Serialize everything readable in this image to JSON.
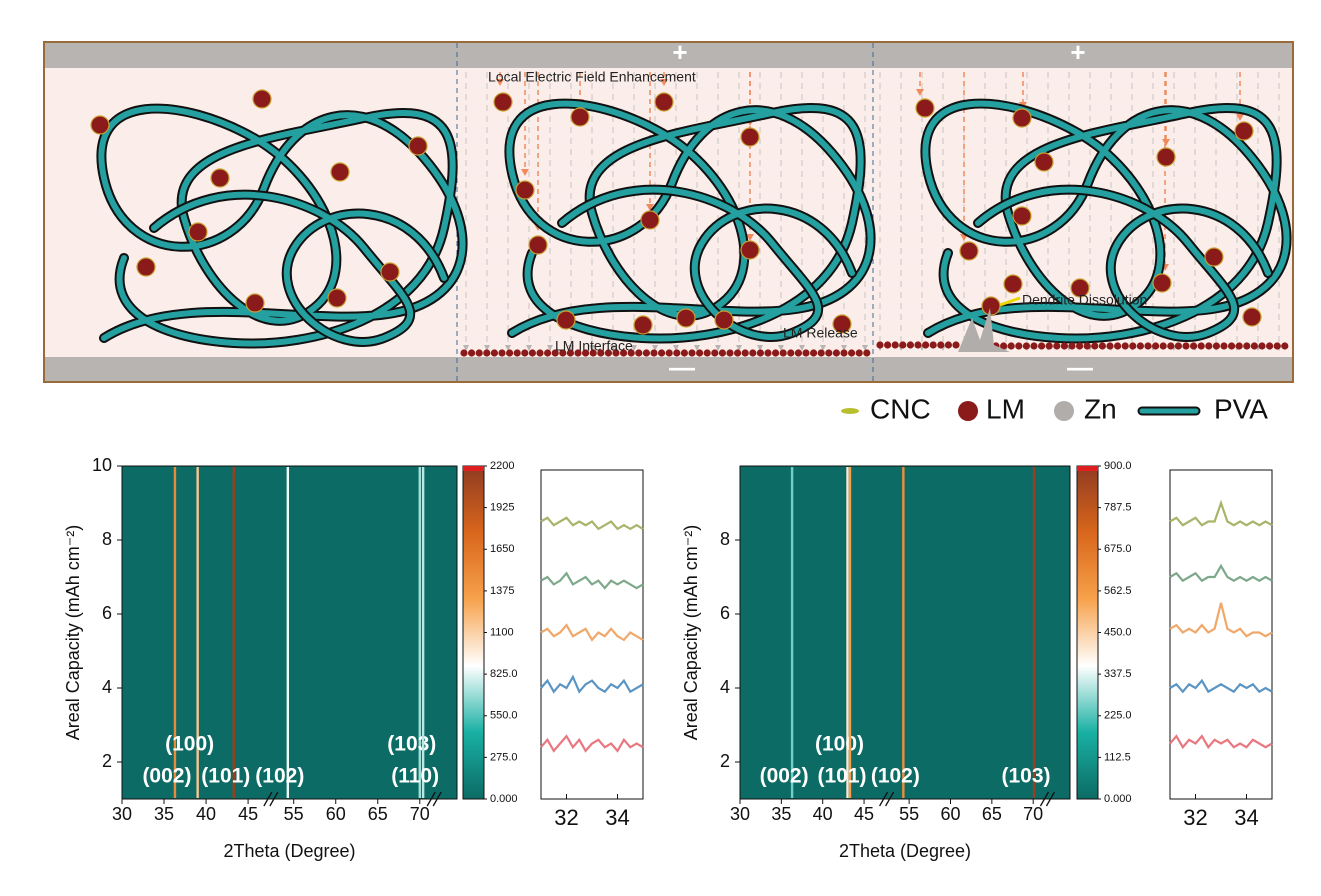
{
  "schematic": {
    "top_signs": [
      "+",
      "+"
    ],
    "bottom_signs": [
      "—",
      "—"
    ],
    "annotations": [
      "Local Electric Field Enhancement",
      "LM Interface",
      "LM Release",
      "Dendrite Dissolution"
    ],
    "legend": [
      "CNC",
      "LM",
      "Zn",
      "PVA"
    ]
  },
  "chart_data": [
    {
      "type": "heatmap",
      "xlabel": "2Theta (Degree)",
      "ylabel": "Areal Capacity (mAh cm⁻²)",
      "xlim": [
        30,
        80
      ],
      "axis_breaks": [
        [
          47,
          53
        ],
        [
          71,
          78
        ]
      ],
      "xticks": [
        30,
        35,
        40,
        45,
        55,
        60,
        65,
        70
      ],
      "ylim": [
        1,
        10
      ],
      "yticks": [
        2,
        4,
        6,
        8,
        10
      ],
      "colormap": [
        "#0c6b64",
        "#19b0a4",
        "#ffffff",
        "#f7a24d",
        "#d9661c",
        "#8f3b22"
      ],
      "clim": [
        0,
        2200
      ],
      "cticks": [
        {
          "value": 0,
          "label": "0.000"
        },
        {
          "value": 275,
          "label": "275.0"
        },
        {
          "value": 550,
          "label": "550.0"
        },
        {
          "value": 825,
          "label": "825.0"
        },
        1100,
        1375,
        1650,
        1925,
        2200
      ],
      "peaks": [
        {
          "label": "(002)",
          "x": 36.3,
          "intensity": 1500
        },
        {
          "label": "(100)",
          "x": 39.0,
          "intensity": 1150
        },
        {
          "label": "(101)",
          "x": 43.3,
          "intensity": 2150
        },
        {
          "label": "(102)",
          "x": 54.3,
          "intensity": 850
        },
        {
          "label": "(103)",
          "x": 70.0,
          "intensity": 700
        },
        {
          "label": "(110)",
          "x": 70.4,
          "intensity": 750
        }
      ],
      "inset": {
        "type": "line",
        "xlim": [
          31,
          35
        ],
        "xticks": [
          32,
          34
        ],
        "ylim": [
          1,
          10
        ],
        "x": [
          31,
          31.25,
          31.5,
          31.75,
          32,
          32.25,
          32.5,
          32.75,
          33,
          33.25,
          33.5,
          33.75,
          34,
          34.25,
          34.5,
          34.75,
          35
        ],
        "series": [
          {
            "color": "#e8777f",
            "values": [
              2.4,
              2.6,
              2.3,
              2.5,
              2.7,
              2.4,
              2.6,
              2.3,
              2.5,
              2.6,
              2.4,
              2.5,
              2.3,
              2.6,
              2.4,
              2.5,
              2.4
            ]
          },
          {
            "color": "#5b95c4",
            "values": [
              4.0,
              4.2,
              3.9,
              4.1,
              4.0,
              4.3,
              3.9,
              4.1,
              4.2,
              4.0,
              3.9,
              4.1,
              4.0,
              4.2,
              3.9,
              4.0,
              4.1
            ]
          },
          {
            "color": "#f0a86a",
            "values": [
              5.5,
              5.6,
              5.4,
              5.5,
              5.7,
              5.4,
              5.5,
              5.6,
              5.3,
              5.5,
              5.4,
              5.6,
              5.4,
              5.3,
              5.5,
              5.4,
              5.3
            ]
          },
          {
            "color": "#7da88a",
            "values": [
              6.9,
              7.0,
              6.8,
              6.9,
              7.1,
              6.8,
              6.9,
              7.0,
              6.8,
              6.9,
              6.7,
              6.9,
              6.8,
              6.9,
              6.8,
              6.7,
              6.8
            ]
          },
          {
            "color": "#a9b36a",
            "values": [
              8.5,
              8.6,
              8.4,
              8.5,
              8.6,
              8.4,
              8.5,
              8.4,
              8.5,
              8.3,
              8.4,
              8.5,
              8.3,
              8.4,
              8.3,
              8.4,
              8.3
            ]
          }
        ]
      }
    },
    {
      "type": "heatmap",
      "xlabel": "2Theta (Degree)",
      "ylabel": "Areal Capacity (mAh cm⁻²)",
      "xlim": [
        30,
        80
      ],
      "axis_breaks": [
        [
          47,
          53
        ],
        [
          71,
          78
        ]
      ],
      "xticks": [
        30,
        35,
        40,
        45,
        55,
        60,
        65,
        70
      ],
      "ylim": [
        1,
        10
      ],
      "yticks": [
        2,
        4,
        6,
        8
      ],
      "colormap": [
        "#0c6b64",
        "#19b0a4",
        "#ffffff",
        "#f7a24d",
        "#d9661c",
        "#8f3b22"
      ],
      "clim": [
        0,
        900
      ],
      "cticks": [
        {
          "value": 0,
          "label": "0.000"
        },
        112.5,
        {
          "value": 225,
          "label": "225.0"
        },
        337.5,
        {
          "value": 450,
          "label": "450.0"
        },
        562.5,
        {
          "value": 675,
          "label": "675.0"
        },
        787.5,
        {
          "value": 900,
          "label": "900.0"
        }
      ],
      "peaks": [
        {
          "label": "(002)",
          "x": 36.3,
          "intensity": 250
        },
        {
          "label": "(100)",
          "x": 43.0,
          "intensity": 400
        },
        {
          "label": "(101)",
          "x": 43.3,
          "intensity": 550
        },
        {
          "label": "(102)",
          "x": 54.3,
          "intensity": 600
        },
        {
          "label": "(103)",
          "x": 70.1,
          "intensity": 880
        }
      ],
      "inset": {
        "type": "line",
        "xlim": [
          31,
          35
        ],
        "xticks": [
          32,
          34
        ],
        "ylim": [
          1,
          10
        ],
        "x": [
          31,
          31.25,
          31.5,
          31.75,
          32,
          32.25,
          32.5,
          32.75,
          33,
          33.25,
          33.5,
          33.75,
          34,
          34.25,
          34.5,
          34.75,
          35
        ],
        "series": [
          {
            "color": "#e8777f",
            "values": [
              2.5,
              2.7,
              2.4,
              2.6,
              2.5,
              2.7,
              2.4,
              2.6,
              2.5,
              2.6,
              2.4,
              2.5,
              2.4,
              2.6,
              2.5,
              2.4,
              2.5
            ]
          },
          {
            "color": "#5b95c4",
            "values": [
              4.0,
              4.1,
              3.9,
              4.1,
              4.0,
              4.2,
              3.9,
              4.0,
              4.1,
              4.0,
              3.9,
              4.1,
              4.0,
              4.1,
              3.9,
              4.0,
              3.9
            ]
          },
          {
            "color": "#f0a86a",
            "values": [
              5.6,
              5.7,
              5.5,
              5.6,
              5.5,
              5.7,
              5.5,
              5.6,
              6.3,
              5.6,
              5.5,
              5.6,
              5.4,
              5.5,
              5.5,
              5.4,
              5.5
            ]
          },
          {
            "color": "#7da88a",
            "values": [
              7.0,
              7.1,
              6.9,
              7.0,
              7.1,
              6.9,
              7.0,
              7.0,
              7.3,
              7.0,
              6.9,
              7.0,
              6.9,
              7.0,
              6.9,
              7.0,
              6.9
            ]
          },
          {
            "color": "#a9b36a",
            "values": [
              8.5,
              8.6,
              8.4,
              8.5,
              8.6,
              8.4,
              8.5,
              8.5,
              9.0,
              8.5,
              8.4,
              8.5,
              8.4,
              8.5,
              8.4,
              8.5,
              8.4
            ]
          }
        ]
      }
    }
  ]
}
